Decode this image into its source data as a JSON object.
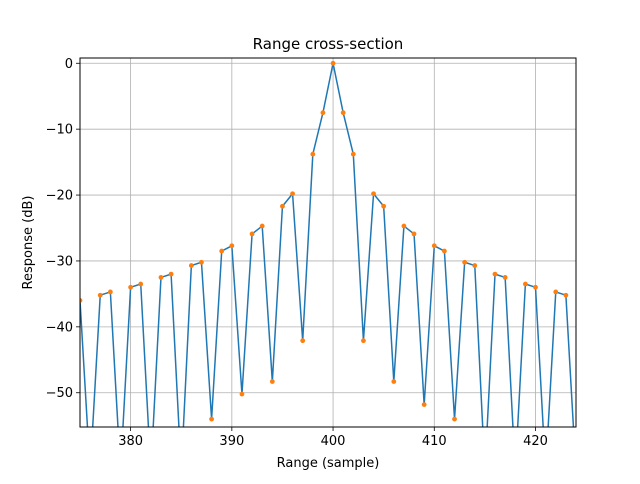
{
  "chart_data": {
    "type": "line",
    "title": "Range cross-section",
    "xlabel": "Range (sample)",
    "ylabel": "Response (dB)",
    "xlim": [
      375,
      424
    ],
    "ylim": [
      -55.2,
      0.8
    ],
    "x_ticks": [
      380,
      390,
      400,
      410,
      420
    ],
    "y_ticks": [
      0,
      -10,
      -20,
      -30,
      -40,
      -50
    ],
    "grid": true,
    "line_color": "#1f77b4",
    "marker_color": "#ff7f0e",
    "series": [
      {
        "x": [
          375,
          376,
          377,
          378,
          379,
          380,
          381,
          382,
          383,
          384,
          385,
          386,
          387,
          388,
          389,
          390,
          391,
          392,
          393,
          394,
          395,
          396,
          397,
          398,
          399,
          400,
          401,
          402,
          403,
          404,
          405,
          406,
          407,
          408,
          409,
          410,
          411,
          412,
          413,
          414,
          415,
          416,
          417,
          418,
          419,
          420,
          421,
          422,
          423,
          424
        ],
        "y": [
          -36,
          -62,
          -35.2,
          -34.7,
          -62,
          -34,
          -33.5,
          -62,
          -32.5,
          -32,
          -62,
          -30.7,
          -30.2,
          -54,
          -28.5,
          -27.7,
          -50.2,
          -25.9,
          -24.7,
          -48.3,
          -21.7,
          -19.8,
          -42.1,
          -13.8,
          -7.5,
          0,
          -7.5,
          -13.8,
          -42.1,
          -19.8,
          -21.7,
          -48.3,
          -24.7,
          -25.9,
          -51.8,
          -27.7,
          -28.5,
          -54,
          -30.2,
          -30.7,
          -62,
          -32,
          -32.5,
          -62,
          -33.5,
          -34,
          -62,
          -34.7,
          -35.2,
          -62
        ]
      }
    ],
    "markers": {
      "x": [
        375,
        377,
        378,
        380,
        381,
        383,
        384,
        386,
        387,
        388,
        389,
        390,
        391,
        392,
        393,
        394,
        395,
        396,
        397,
        398,
        399,
        400,
        401,
        402,
        403,
        404,
        405,
        406,
        407,
        408,
        409,
        410,
        411,
        412,
        413,
        414,
        416,
        417,
        419,
        420,
        422,
        423
      ],
      "y": [
        -36,
        -35.2,
        -34.7,
        -34,
        -33.5,
        -32.5,
        -32,
        -30.7,
        -30.2,
        -54,
        -28.5,
        -27.7,
        -50.2,
        -25.9,
        -24.7,
        -48.3,
        -21.7,
        -19.8,
        -42.1,
        -13.8,
        -7.5,
        0,
        -7.5,
        -13.8,
        -42.1,
        -19.8,
        -21.7,
        -48.3,
        -24.7,
        -25.9,
        -51.8,
        -27.7,
        -28.5,
        -54,
        -30.2,
        -30.7,
        -32,
        -32.5,
        -33.5,
        -34,
        -34.7,
        -35.2
      ]
    }
  }
}
